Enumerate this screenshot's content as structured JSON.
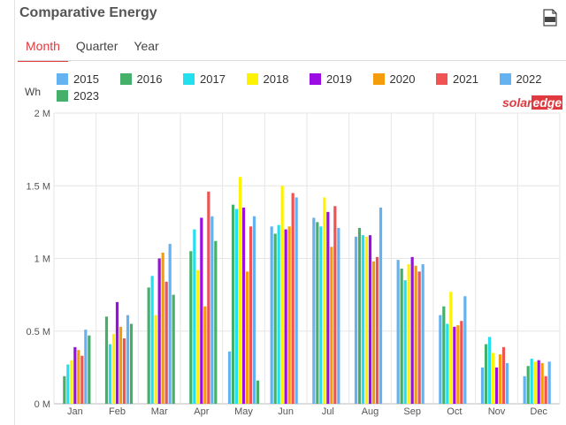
{
  "header": {
    "title": "Comparative Energy",
    "csv_icon": "csv-download-icon"
  },
  "tabs": [
    {
      "label": "Month",
      "active": true
    },
    {
      "label": "Quarter",
      "active": false
    },
    {
      "label": "Year",
      "active": false
    }
  ],
  "brand": {
    "part1": "solar",
    "part2": "edge"
  },
  "colors": {
    "accent": "#e0393e"
  },
  "chart_data": {
    "type": "bar",
    "ylabel": "Wh",
    "ylim": [
      0,
      2000000
    ],
    "yticks": [
      {
        "value": 0,
        "label": "0 M"
      },
      {
        "value": 500000,
        "label": "0.5 M"
      },
      {
        "value": 1000000,
        "label": "1 M"
      },
      {
        "value": 1500000,
        "label": "1.5 M"
      },
      {
        "value": 2000000,
        "label": "2 M"
      }
    ],
    "grid": true,
    "legend_position": "top",
    "categories": [
      "Jan",
      "Feb",
      "Mar",
      "Apr",
      "May",
      "Jun",
      "Jul",
      "Aug",
      "Sep",
      "Oct",
      "Nov",
      "Dec"
    ],
    "series": [
      {
        "name": "2015",
        "color": "#65b2f0",
        "values": [
          null,
          null,
          null,
          null,
          360000,
          1220000,
          1280000,
          1150000,
          990000,
          610000,
          250000,
          190000
        ]
      },
      {
        "name": "2016",
        "color": "#44b06a",
        "values": [
          190000,
          600000,
          800000,
          1050000,
          1370000,
          1170000,
          1250000,
          1210000,
          930000,
          670000,
          410000,
          260000
        ]
      },
      {
        "name": "2017",
        "color": "#22e0ee",
        "values": [
          270000,
          410000,
          880000,
          1200000,
          1340000,
          1230000,
          1220000,
          1160000,
          850000,
          550000,
          460000,
          310000
        ]
      },
      {
        "name": "2018",
        "color": "#fff200",
        "values": [
          300000,
          480000,
          610000,
          920000,
          1560000,
          1500000,
          1420000,
          1150000,
          960000,
          770000,
          350000,
          290000
        ]
      },
      {
        "name": "2019",
        "color": "#9c0de4",
        "values": [
          390000,
          700000,
          1000000,
          1280000,
          1350000,
          1200000,
          1320000,
          1160000,
          1010000,
          530000,
          250000,
          300000
        ]
      },
      {
        "name": "2020",
        "color": "#f59c0b",
        "values": [
          370000,
          530000,
          1040000,
          670000,
          910000,
          1220000,
          1080000,
          980000,
          950000,
          540000,
          340000,
          280000
        ]
      },
      {
        "name": "2021",
        "color": "#ef5353",
        "values": [
          330000,
          450000,
          840000,
          1460000,
          1220000,
          1450000,
          1360000,
          1010000,
          910000,
          570000,
          390000,
          190000
        ]
      },
      {
        "name": "2022",
        "color": "#65b2f0",
        "values": [
          510000,
          610000,
          1100000,
          1290000,
          1290000,
          1420000,
          1210000,
          1350000,
          960000,
          740000,
          280000,
          290000
        ]
      },
      {
        "name": "2023",
        "color": "#44b06a",
        "values": [
          470000,
          550000,
          750000,
          1120000,
          160000,
          null,
          null,
          null,
          null,
          null,
          null,
          null
        ]
      }
    ]
  }
}
